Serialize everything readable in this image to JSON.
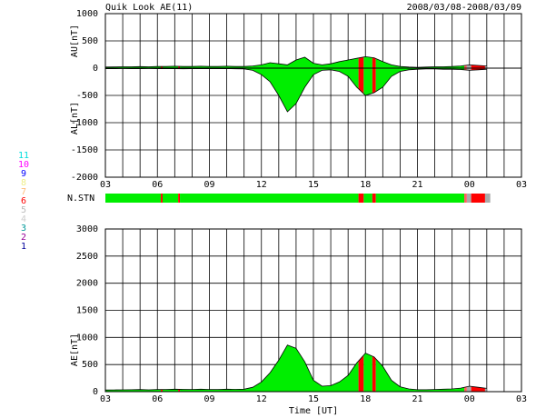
{
  "chart_data": [
    {
      "type": "range",
      "title": "Quik Look AE(11)",
      "subtitle": "2008/03/08-2008/03/09",
      "ylabel_upper": "AU[nT]",
      "ylabel_lower": "AL[nT]",
      "x": [
        3,
        3.5,
        4,
        4.5,
        5,
        5.5,
        6,
        6.5,
        7,
        7.5,
        8,
        8.5,
        9,
        9.5,
        10,
        10.5,
        11,
        11.5,
        12,
        12.5,
        13,
        13.5,
        14,
        14.5,
        15,
        15.5,
        16,
        16.5,
        17,
        17.5,
        18,
        18.5,
        19,
        19.5,
        20,
        20.5,
        21,
        21.5,
        22,
        22.5,
        23,
        23.5,
        24,
        24.5,
        25
      ],
      "series": [
        {
          "color": "#000000",
          "values": [
            20,
            22,
            25,
            25,
            28,
            25,
            30,
            30,
            35,
            30,
            30,
            35,
            30,
            30,
            35,
            30,
            30,
            40,
            60,
            100,
            80,
            60,
            150,
            200,
            90,
            60,
            80,
            120,
            150,
            180,
            210,
            190,
            120,
            60,
            30,
            20,
            15,
            20,
            25,
            25,
            30,
            40,
            60,
            50,
            40
          ]
        },
        {
          "color": "#000000",
          "values": [
            -10,
            -10,
            -8,
            -10,
            -10,
            -8,
            -10,
            -10,
            -10,
            -12,
            -10,
            -10,
            -10,
            -10,
            -10,
            -12,
            -15,
            -40,
            -120,
            -250,
            -500,
            -800,
            -650,
            -350,
            -120,
            -40,
            -30,
            -60,
            -150,
            -350,
            -500,
            -450,
            -350,
            -150,
            -60,
            -30,
            -20,
            -15,
            -15,
            -20,
            -20,
            -25,
            -40,
            -30,
            -20
          ]
        }
      ],
      "xlim": [
        3,
        27
      ],
      "xticks": [
        {
          "value": 3,
          "label": "03"
        },
        {
          "value": 6,
          "label": "06"
        },
        {
          "value": 9,
          "label": "09"
        },
        12,
        15,
        18,
        21,
        {
          "value": 24,
          "label": "00"
        },
        {
          "value": 27,
          "label": "03"
        }
      ],
      "ylim": [
        -2000,
        1000
      ],
      "yticks": [
        1000,
        500,
        0,
        -500,
        -1000,
        -1500,
        -2000
      ],
      "grid": true
    },
    {
      "type": "segments",
      "label": "N.STN",
      "segments": [
        {
          "start": 3,
          "end": 6.2,
          "color": "#00ee00"
        },
        {
          "start": 6.2,
          "end": 6.3,
          "color": "#ff0000"
        },
        {
          "start": 6.3,
          "end": 7.2,
          "color": "#00ee00"
        },
        {
          "start": 7.2,
          "end": 7.3,
          "color": "#ff0000"
        },
        {
          "start": 7.3,
          "end": 17.6,
          "color": "#00ee00"
        },
        {
          "start": 17.6,
          "end": 17.9,
          "color": "#ff0000"
        },
        {
          "start": 17.9,
          "end": 18.4,
          "color": "#00ee00"
        },
        {
          "start": 18.4,
          "end": 18.6,
          "color": "#ff0000"
        },
        {
          "start": 18.6,
          "end": 23.7,
          "color": "#00ee00"
        },
        {
          "start": 23.7,
          "end": 23.85,
          "color": "#ff6060"
        },
        {
          "start": 23.85,
          "end": 24.1,
          "color": "#aaaaaa"
        },
        {
          "start": 24.1,
          "end": 24.9,
          "color": "#ff0000"
        },
        {
          "start": 24.9,
          "end": 25.2,
          "color": "#aaaaaa"
        }
      ],
      "legend": [
        {
          "label": "11",
          "color": "#00dddd"
        },
        {
          "label": "10",
          "color": "#ff00ff"
        },
        {
          "label": "9",
          "color": "#0000ff"
        },
        {
          "label": "8",
          "color": "#eeee88"
        },
        {
          "label": "7",
          "color": "#ffbb77"
        },
        {
          "label": "6",
          "color": "#ff0000"
        },
        {
          "label": "5",
          "color": "#bbbbbb"
        },
        {
          "label": "4",
          "color": "#cccccc"
        },
        {
          "label": "3",
          "color": "#009999"
        },
        {
          "label": "2",
          "color": "#990099"
        },
        {
          "label": "1",
          "color": "#000099"
        }
      ]
    },
    {
      "type": "area",
      "ylabel": "AE[nT]",
      "xlabel": "Time [UT]",
      "x": [
        3,
        3.5,
        4,
        4.5,
        5,
        5.5,
        6,
        6.5,
        7,
        7.5,
        8,
        8.5,
        9,
        9.5,
        10,
        10.5,
        11,
        11.5,
        12,
        12.5,
        13,
        13.5,
        14,
        14.5,
        15,
        15.5,
        16,
        16.5,
        17,
        17.5,
        18,
        18.5,
        19,
        19.5,
        20,
        20.5,
        21,
        21.5,
        22,
        22.5,
        23,
        23.5,
        24,
        24.5,
        25
      ],
      "color": "#000000",
      "values": [
        30,
        32,
        33,
        35,
        38,
        33,
        40,
        40,
        45,
        42,
        40,
        45,
        40,
        40,
        45,
        42,
        45,
        80,
        180,
        350,
        580,
        860,
        800,
        550,
        210,
        100,
        110,
        180,
        300,
        530,
        710,
        640,
        470,
        210,
        90,
        50,
        35,
        35,
        40,
        45,
        50,
        65,
        100,
        80,
        60
      ],
      "xlim": [
        3,
        27
      ],
      "xticks": [
        {
          "value": 3,
          "label": "03"
        },
        {
          "value": 6,
          "label": "06"
        },
        {
          "value": 9,
          "label": "09"
        },
        12,
        15,
        18,
        21,
        {
          "value": 24,
          "label": "00"
        },
        {
          "value": 27,
          "label": "03"
        }
      ],
      "ylim": [
        0,
        3000
      ],
      "yticks": [
        3000,
        2500,
        2000,
        1500,
        1000,
        500,
        0
      ],
      "grid": true
    }
  ]
}
